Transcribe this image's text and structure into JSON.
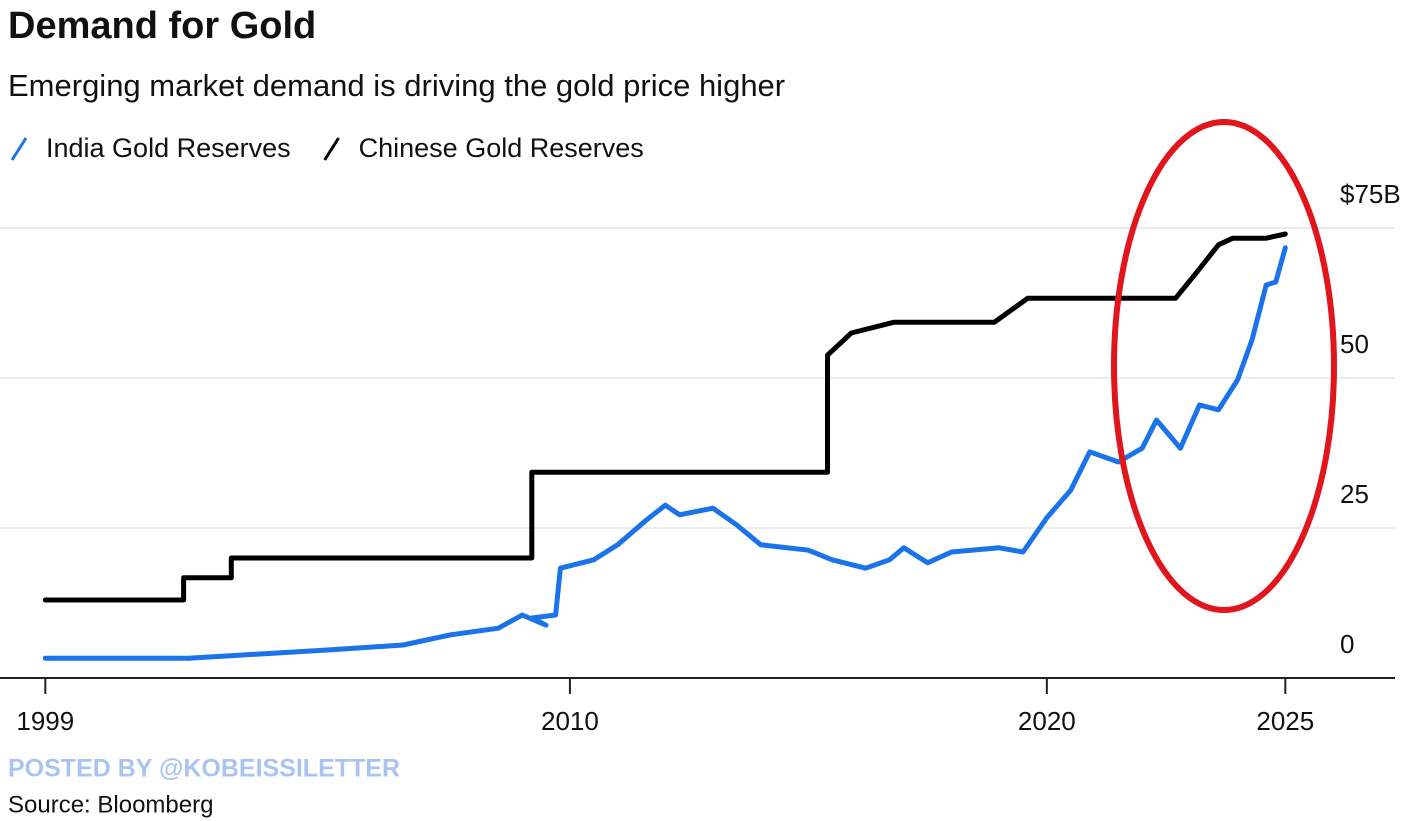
{
  "chart_data": {
    "type": "line",
    "title": "Demand for Gold",
    "subtitle": "Emerging market demand is driving the gold price higher",
    "credit": "POSTED BY @KOBEISSILETTER",
    "source": "Source: Bloomberg",
    "xlim": [
      1998.05,
      2027.3
    ],
    "xticks": [
      1999,
      2010,
      2020,
      2025
    ],
    "ylim": [
      0,
      75
    ],
    "yticks": [
      0,
      25,
      50,
      {
        "value": 75,
        "label": "$75B"
      }
    ],
    "grid": true,
    "legend": "top-left",
    "series": [
      {
        "name": "India Gold Reserves",
        "color": "#1a73e8",
        "x": [
          1999,
          2002,
          2005,
          2006.5,
          2007.5,
          2008.5,
          2009,
          2009.5,
          2009.2,
          2009.7,
          2009.8,
          2010.5,
          2011,
          2011.6,
          2012,
          2012.3,
          2013,
          2013.5,
          2014,
          2015,
          2015.5,
          2016.2,
          2016.7,
          2017,
          2017.5,
          2018,
          2019,
          2019.5,
          2020,
          2020.5,
          2020.9,
          2021.5,
          2022,
          2022.3,
          2022.8,
          2023.2,
          2023.6,
          2024,
          2024.3,
          2024.6,
          2024.8,
          2025
        ],
        "values": [
          3.3,
          3.3,
          4.7,
          5.5,
          7.2,
          8.3,
          10.5,
          8.8,
          10,
          10.5,
          18.3,
          19.7,
          22.2,
          26.3,
          28.8,
          27.2,
          28.3,
          25.5,
          22.2,
          21.3,
          19.7,
          18.3,
          19.7,
          21.7,
          19.2,
          21,
          21.7,
          21,
          26.7,
          31.3,
          37.7,
          36,
          38.3,
          43,
          38.3,
          45.5,
          44.7,
          49.7,
          56.3,
          65.5,
          66,
          71.7
        ]
      },
      {
        "name": "Chinese Gold Reserves",
        "color": "#000000",
        "x": [
          1999,
          2001.9,
          2001.9,
          2002.9,
          2002.9,
          2009.2,
          2009.2,
          2015.4,
          2015.4,
          2015.9,
          2016.8,
          2018.9,
          2019.6,
          2022.7,
          2023.1,
          2023.6,
          2023.9,
          2024.6,
          2025
        ],
        "values": [
          13,
          13,
          16.7,
          16.7,
          20,
          20,
          34.3,
          34.3,
          53.8,
          57.5,
          59.3,
          59.3,
          63.3,
          63.3,
          67.2,
          72.2,
          73.3,
          73.3,
          74
        ]
      }
    ]
  }
}
